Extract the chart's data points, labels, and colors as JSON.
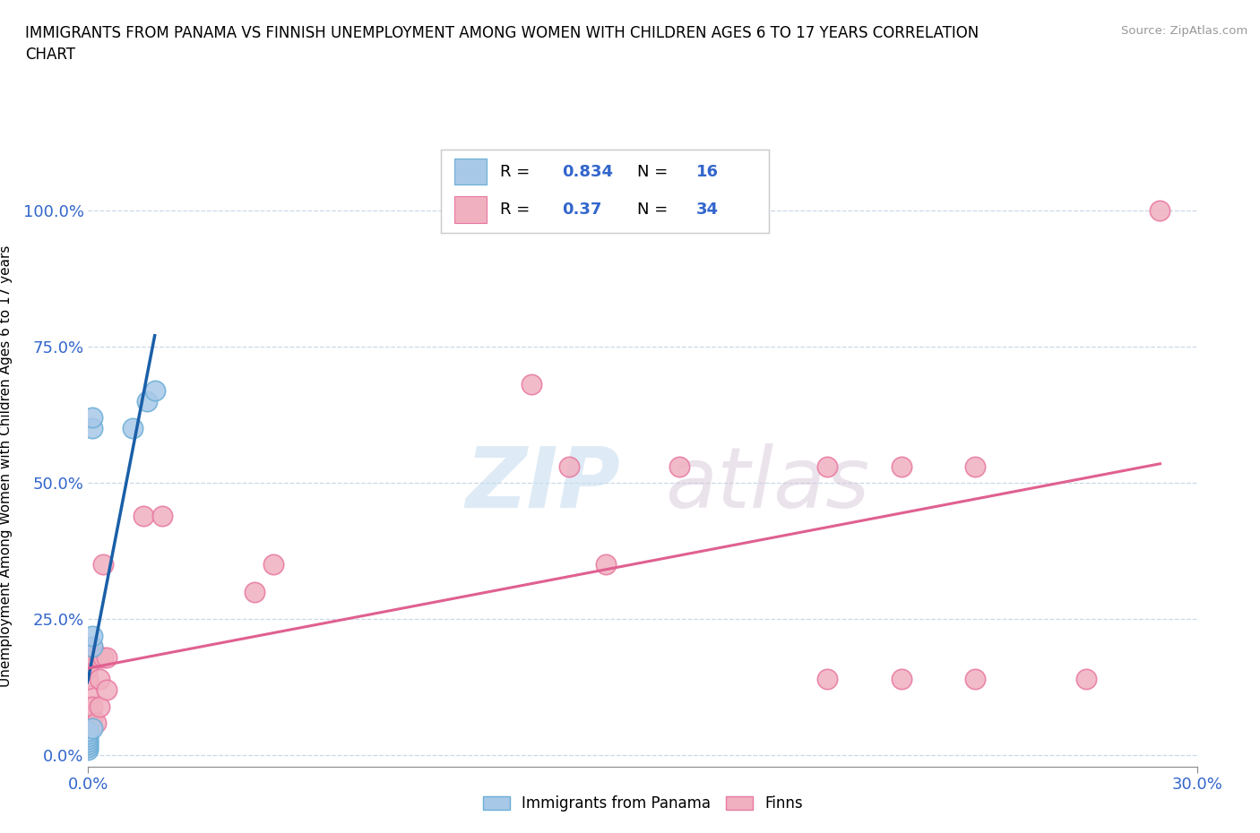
{
  "title": "IMMIGRANTS FROM PANAMA VS FINNISH UNEMPLOYMENT AMONG WOMEN WITH CHILDREN AGES 6 TO 17 YEARS CORRELATION\nCHART",
  "source": "Source: ZipAtlas.com",
  "xlabel": "Immigrants from Panama",
  "ylabel": "Unemployment Among Women with Children Ages 6 to 17 years",
  "xlim": [
    0.0,
    0.3
  ],
  "ylim": [
    -0.02,
    1.08
  ],
  "xticks": [
    0.0,
    0.3
  ],
  "xtick_labels": [
    "0.0%",
    "30.0%"
  ],
  "yticks": [
    0.0,
    0.25,
    0.5,
    0.75,
    1.0
  ],
  "ytick_labels": [
    "0.0%",
    "25.0%",
    "50.0%",
    "75.0%",
    "100.0%"
  ],
  "blue_color": "#a8c8e8",
  "pink_color": "#f0b0c0",
  "blue_edge_color": "#6aaed6",
  "pink_edge_color": "#e878a0",
  "blue_line_color": "#1a5fa8",
  "pink_line_color": "#e06090",
  "blue_R": 0.834,
  "blue_N": 16,
  "pink_R": 0.37,
  "pink_N": 34,
  "legend_label_blue": "Immigrants from Panama",
  "legend_label_pink": "Finns",
  "watermark_zip": "ZIP",
  "watermark_atlas": "atlas",
  "background_color": "#ffffff",
  "grid_color": "#c8d8e8",
  "blue_scatter_x": [
    0.0,
    0.0,
    0.0,
    0.0,
    0.0,
    0.0,
    0.0,
    0.0,
    0.001,
    0.001,
    0.001,
    0.001,
    0.001,
    0.012,
    0.016,
    0.018
  ],
  "blue_scatter_y": [
    0.01,
    0.015,
    0.02,
    0.025,
    0.03,
    0.035,
    0.04,
    0.045,
    0.05,
    0.2,
    0.22,
    0.6,
    0.62,
    0.6,
    0.65,
    0.67
  ],
  "pink_scatter_x": [
    0.0,
    0.0,
    0.0,
    0.0,
    0.0,
    0.001,
    0.001,
    0.001,
    0.001,
    0.002,
    0.002,
    0.003,
    0.003,
    0.003,
    0.004,
    0.004,
    0.005,
    0.005,
    0.015,
    0.02,
    0.045,
    0.05,
    0.12,
    0.13,
    0.14,
    0.16,
    0.2,
    0.2,
    0.22,
    0.22,
    0.24,
    0.24,
    0.27,
    0.29
  ],
  "pink_scatter_y": [
    0.06,
    0.09,
    0.11,
    0.14,
    0.16,
    0.07,
    0.09,
    0.18,
    0.2,
    0.06,
    0.18,
    0.18,
    0.14,
    0.09,
    0.18,
    0.35,
    0.12,
    0.18,
    0.44,
    0.44,
    0.3,
    0.35,
    0.68,
    0.53,
    0.35,
    0.53,
    0.14,
    0.53,
    0.14,
    0.53,
    0.14,
    0.53,
    0.14,
    1.0
  ],
  "blue_trendline_x": [
    0.0,
    0.018
  ],
  "pink_trendline_x": [
    0.0,
    0.29
  ],
  "blue_trendline_y": [
    0.14,
    0.77
  ],
  "pink_trendline_y": [
    0.16,
    0.535
  ]
}
